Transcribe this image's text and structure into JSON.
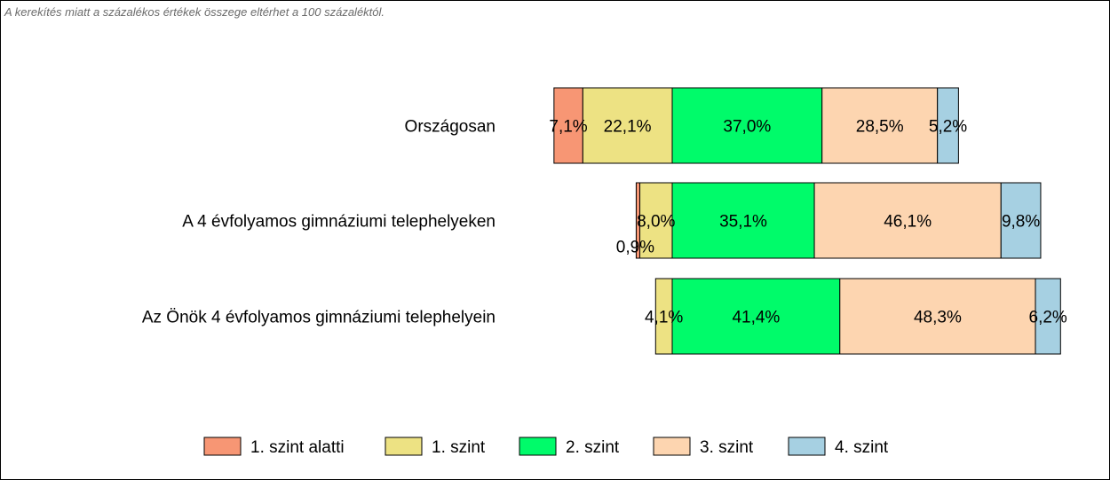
{
  "note": "A kerekítés miatt a  százalékos értékek összege eltérhet a 100 százaléktól.",
  "chart_data": {
    "type": "bar",
    "orientation": "horizontal",
    "stacked": true,
    "diverging": true,
    "categories": [
      "Országosan",
      "A 4 évfolyamos gimnáziumi telephelyeken",
      "Az Önök 4 évfolyamos gimnáziumi telephelyein"
    ],
    "series": [
      {
        "name": "1. szint alatti",
        "color": "#F79674",
        "values": [
          7.1,
          0.9,
          0.0
        ],
        "labels": [
          "7,1%",
          "0,9%",
          ""
        ]
      },
      {
        "name": "1. szint",
        "color": "#EDE283",
        "values": [
          22.1,
          8.0,
          4.1
        ],
        "labels": [
          "22,1%",
          "8,0%",
          "4,1%"
        ]
      },
      {
        "name": "2. szint",
        "color": "#00FB6A",
        "values": [
          37.0,
          35.1,
          41.4
        ],
        "labels": [
          "37,0%",
          "35,1%",
          "41,4%"
        ]
      },
      {
        "name": "3. szint",
        "color": "#FDD5B0",
        "values": [
          28.5,
          46.1,
          48.3
        ],
        "labels": [
          "28,5%",
          "46,1%",
          "48,3%"
        ]
      },
      {
        "name": "4. szint",
        "color": "#A6D0E2",
        "values": [
          5.2,
          9.8,
          6.2
        ],
        "labels": [
          "5,2%",
          "9,8%",
          "6,2%"
        ]
      }
    ],
    "grid": false,
    "legend": "bottom"
  }
}
